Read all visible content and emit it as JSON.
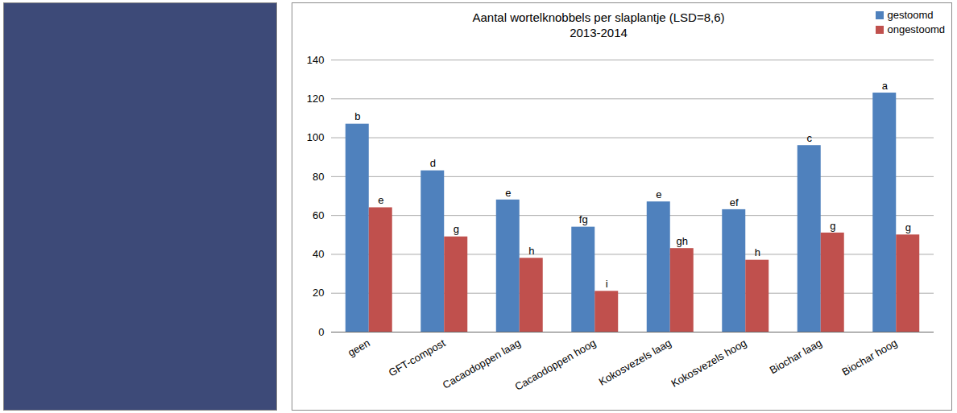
{
  "chart_data": {
    "type": "bar",
    "title": "Aantal wortelknobbels per slaplantje (LSD=8,6)",
    "subtitle": "2013-2014",
    "categories": [
      "geen",
      "GFT-compost",
      "Cacaodoppen laag",
      "Cacaodoppen hoog",
      "Kokosvezels laag",
      "Kokosvezels hoog",
      "Biochar laag",
      "Biochar hoog"
    ],
    "series": [
      {
        "name": "gestoomd",
        "color": "#4f81bd",
        "values": [
          107,
          83,
          68,
          54,
          67,
          63,
          96,
          123
        ],
        "letters": [
          "b",
          "d",
          "e",
          "fg",
          "e",
          "ef",
          "c",
          "a"
        ]
      },
      {
        "name": "ongestoomd",
        "color": "#c0504d",
        "values": [
          64,
          49,
          38,
          21,
          43,
          37,
          51,
          50
        ],
        "letters": [
          "e",
          "g",
          "h",
          "i",
          "gh",
          "h",
          "g",
          "g"
        ]
      }
    ],
    "ylim": [
      0,
      140
    ],
    "yticks": [
      0,
      20,
      40,
      60,
      80,
      100,
      120,
      140
    ],
    "grid": true,
    "legend": "top-right"
  }
}
